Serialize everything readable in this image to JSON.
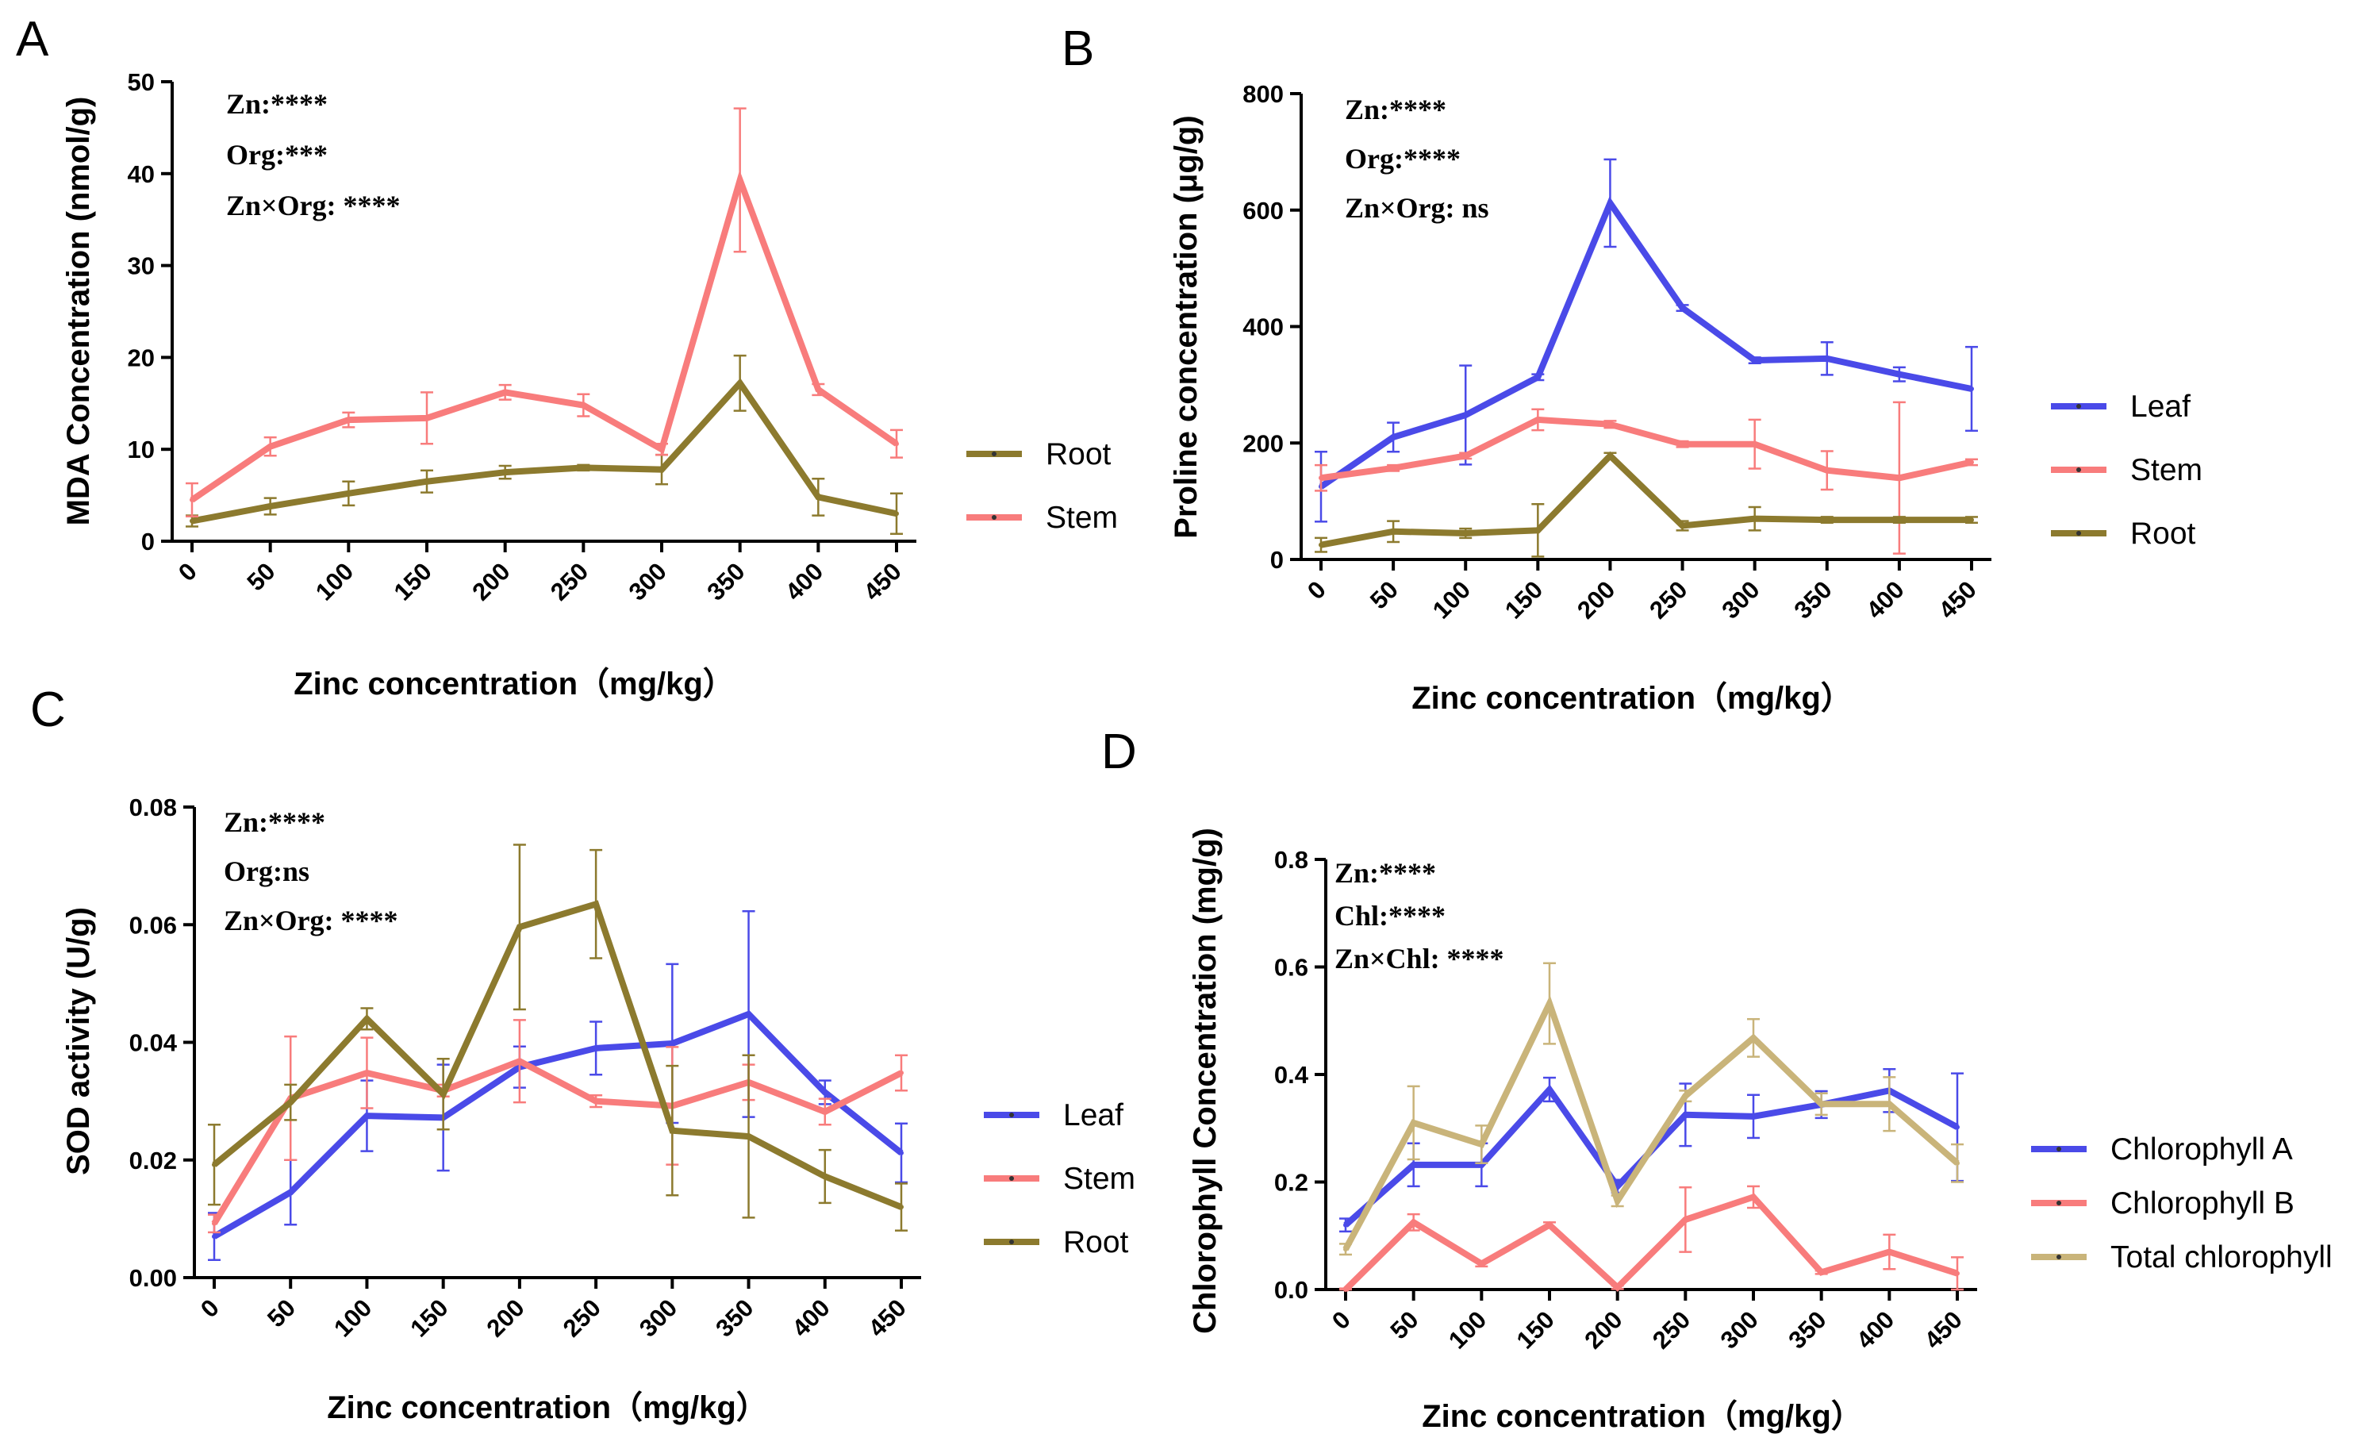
{
  "chart_data": [
    {
      "panel": "A",
      "type": "line",
      "xlabel": "Zinc concentration（mg/kg）",
      "ylabel": "MDA Concentration (nmol/g)",
      "ylim": [
        0,
        50
      ],
      "yticks": [
        "0",
        "10",
        "20",
        "30",
        "40",
        "50"
      ],
      "categories": [
        "0",
        "50",
        "100",
        "150",
        "200",
        "250",
        "300",
        "350",
        "400",
        "450"
      ],
      "stats": [
        "Zn:****",
        "Org:***",
        "Zn×Org: ****"
      ],
      "series": [
        {
          "name": "Root",
          "color": "#8c7a2e",
          "values": [
            2.2,
            3.8,
            5.2,
            6.5,
            7.5,
            8.0,
            7.8,
            17.2,
            4.8,
            3.0
          ],
          "errors": [
            0.6,
            0.9,
            1.3,
            1.2,
            0.7,
            0.3,
            1.6,
            3.0,
            2.0,
            2.2
          ]
        },
        {
          "name": "Stem",
          "color": "#f87c7c",
          "values": [
            4.5,
            10.3,
            13.2,
            13.4,
            16.2,
            14.8,
            10.0,
            39.3,
            16.5,
            10.6
          ],
          "errors": [
            1.8,
            1.0,
            0.8,
            2.8,
            0.8,
            1.2,
            0.6,
            7.8,
            0.6,
            1.5
          ]
        }
      ]
    },
    {
      "panel": "B",
      "type": "line",
      "xlabel": "Zinc concentration（mg/kg）",
      "ylabel": "Proline concentration (μg/g)",
      "ylim": [
        0,
        800
      ],
      "yticks": [
        "0",
        "200",
        "400",
        "600",
        "800"
      ],
      "categories": [
        "0",
        "50",
        "100",
        "150",
        "200",
        "250",
        "300",
        "350",
        "400",
        "450"
      ],
      "stats": [
        "Zn:****",
        "Org:****",
        "Zn×Org: ns"
      ],
      "series": [
        {
          "name": "Leaf",
          "color": "#4a4ae8",
          "values": [
            125,
            210,
            248,
            313,
            612,
            432,
            342,
            345,
            318,
            293
          ],
          "errors": [
            60,
            25,
            85,
            5,
            75,
            5,
            5,
            28,
            12,
            72
          ]
        },
        {
          "name": "Stem",
          "color": "#f87c7c",
          "values": [
            140,
            157,
            178,
            240,
            232,
            198,
            198,
            153,
            140,
            167
          ],
          "errors": [
            22,
            5,
            5,
            18,
            6,
            5,
            42,
            33,
            130,
            5
          ]
        },
        {
          "name": "Root",
          "color": "#8c7a2e",
          "values": [
            25,
            48,
            45,
            50,
            178,
            58,
            70,
            68,
            68,
            68
          ],
          "errors": [
            12,
            18,
            8,
            45,
            5,
            8,
            20,
            5,
            5,
            5
          ]
        }
      ]
    },
    {
      "panel": "C",
      "type": "line",
      "xlabel": "Zinc concentration（mg/kg）",
      "ylabel": "SOD activity (U/g)",
      "ylim": [
        0,
        0.08
      ],
      "yticks": [
        "0.00",
        "0.02",
        "0.04",
        "0.06",
        "0.08"
      ],
      "categories": [
        "0",
        "50",
        "100",
        "150",
        "200",
        "250",
        "300",
        "350",
        "400",
        "450"
      ],
      "stats": [
        "Zn:****",
        "Org:ns",
        "Zn×Org: ****"
      ],
      "series": [
        {
          "name": "Leaf",
          "color": "#4a4ae8",
          "values": [
            0.007,
            0.0145,
            0.0275,
            0.0272,
            0.0358,
            0.039,
            0.0398,
            0.0448,
            0.0315,
            0.0212
          ],
          "errors": [
            0.004,
            0.0055,
            0.006,
            0.009,
            0.0035,
            0.0045,
            0.0135,
            0.0175,
            0.002,
            0.005
          ]
        },
        {
          "name": "Stem",
          "color": "#f87c7c",
          "values": [
            0.0092,
            0.0305,
            0.0348,
            0.0318,
            0.0368,
            0.03,
            0.0292,
            0.0332,
            0.0282,
            0.0348
          ],
          "errors": [
            0.0015,
            0.0105,
            0.006,
            0.001,
            0.007,
            0.001,
            0.01,
            0.003,
            0.0022,
            0.003
          ]
        },
        {
          "name": "Root",
          "color": "#8c7a2e",
          "values": [
            0.0192,
            0.0298,
            0.044,
            0.0312,
            0.0596,
            0.0635,
            0.025,
            0.024,
            0.0172,
            0.012
          ],
          "errors": [
            0.0068,
            0.003,
            0.0018,
            0.006,
            0.014,
            0.0092,
            0.011,
            0.0138,
            0.0045,
            0.004
          ]
        }
      ]
    },
    {
      "panel": "D",
      "type": "line",
      "xlabel": "Zinc concentration（mg/kg）",
      "ylabel": "Chlorophyll Concentration (mg/g)",
      "ylim": [
        0,
        0.8
      ],
      "yticks": [
        "0.0",
        "0.2",
        "0.4",
        "0.6",
        "0.8"
      ],
      "categories": [
        "0",
        "50",
        "100",
        "150",
        "200",
        "250",
        "300",
        "350",
        "400",
        "450"
      ],
      "stats": [
        "Zn:****",
        "Chl:****",
        "Zn×Chl: ****"
      ],
      "series": [
        {
          "name": "Chlorophyll A",
          "color": "#4a4ae8",
          "values": [
            0.12,
            0.232,
            0.232,
            0.372,
            0.192,
            0.325,
            0.322,
            0.344,
            0.37,
            0.302
          ],
          "errors": [
            0.012,
            0.04,
            0.04,
            0.022,
            0.012,
            0.058,
            0.04,
            0.025,
            0.04,
            0.1
          ]
        },
        {
          "name": "Chlorophyll B",
          "color": "#f87c7c",
          "values": [
            0.0,
            0.125,
            0.048,
            0.12,
            0.004,
            0.13,
            0.172,
            0.032,
            0.07,
            0.03
          ],
          "errors": [
            0.002,
            0.015,
            0.005,
            0.005,
            0.003,
            0.06,
            0.02,
            0.003,
            0.032,
            0.03
          ]
        },
        {
          "name": "Total chlorophyll",
          "color": "#c9b47a",
          "values": [
            0.075,
            0.31,
            0.27,
            0.532,
            0.165,
            0.36,
            0.468,
            0.345,
            0.345,
            0.235
          ],
          "errors": [
            0.01,
            0.068,
            0.035,
            0.075,
            0.01,
            0.01,
            0.035,
            0.02,
            0.05,
            0.035
          ]
        }
      ]
    }
  ]
}
